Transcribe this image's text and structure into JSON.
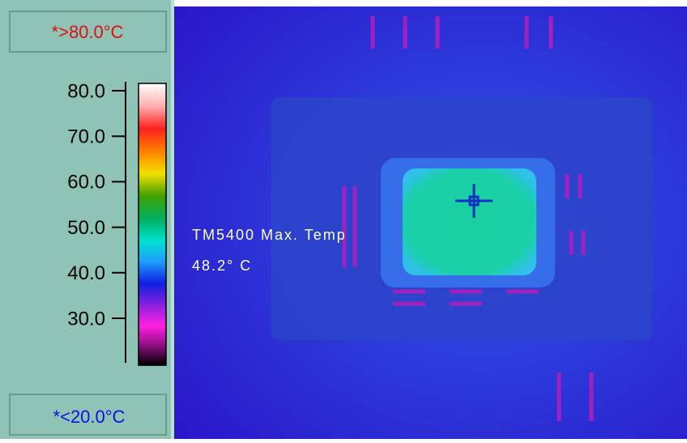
{
  "scale": {
    "max_label": "*>80.0°C",
    "min_label": "*<20.0°C",
    "ticks": [
      "80.0",
      "70.0",
      "60.0",
      "50.0",
      "40.0",
      "30.0"
    ]
  },
  "image": {
    "annotation": {
      "title": "TM5400 Max. Temp",
      "value": "48.2° C"
    }
  }
}
